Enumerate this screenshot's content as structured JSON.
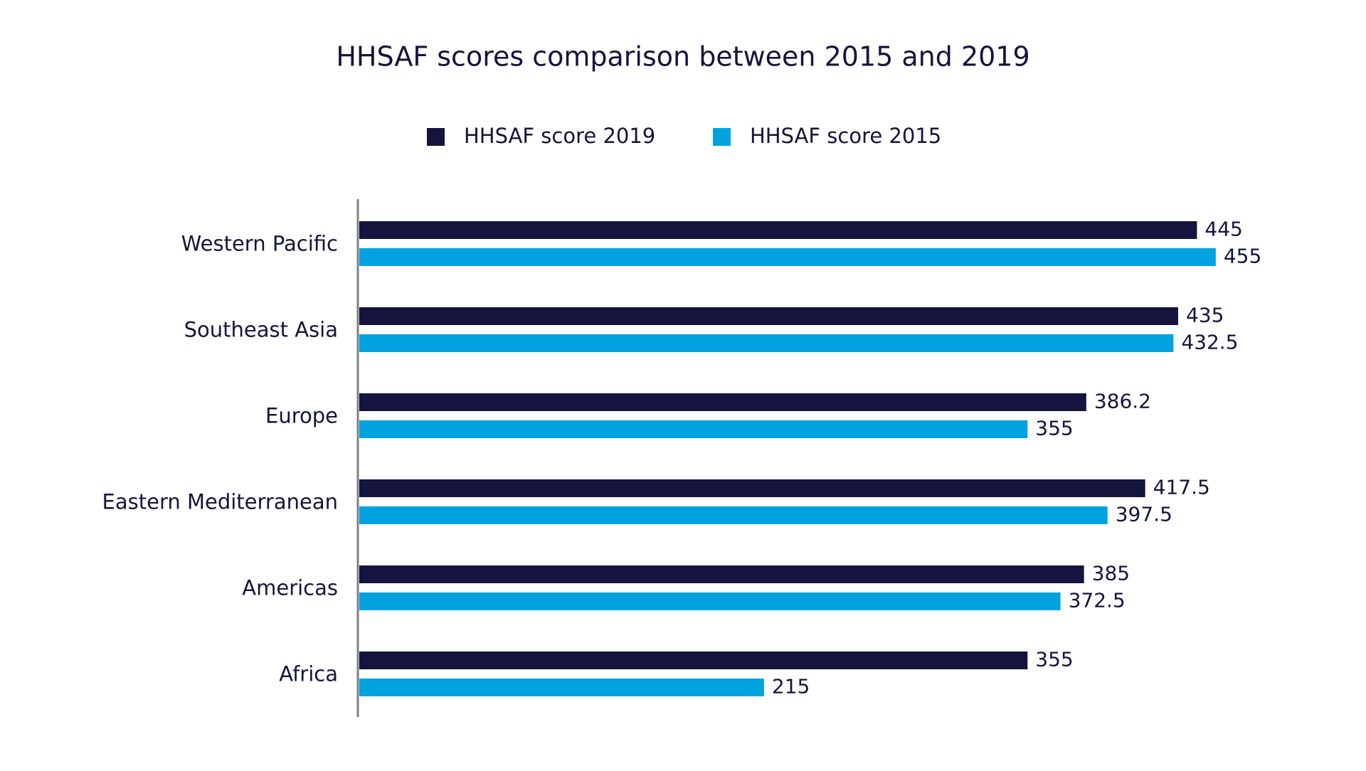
{
  "chart_data": {
    "type": "bar",
    "orientation": "horizontal",
    "title": "HHSAF scores comparison between 2015 and 2019",
    "categories": [
      "Western Pacific",
      "Southeast Asia",
      "Europe",
      "Eastern Mediterranean",
      "Americas",
      "Africa"
    ],
    "series": [
      {
        "name": "HHSAF score 2019",
        "color": "#14143f",
        "values": [
          445,
          435,
          386.2,
          417.5,
          385,
          355
        ]
      },
      {
        "name": "HHSAF score 2015",
        "color": "#00a3e0",
        "values": [
          455,
          432.5,
          355,
          397.5,
          372.5,
          215
        ]
      }
    ],
    "xlim": [
      0,
      480
    ],
    "legend": "top"
  }
}
